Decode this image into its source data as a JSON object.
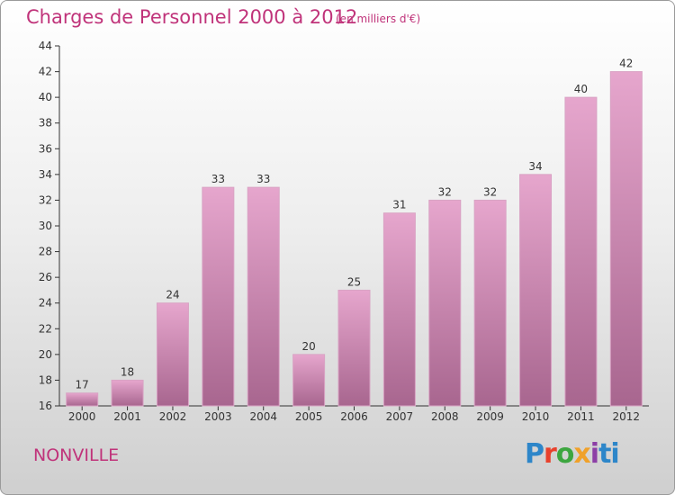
{
  "title": "Charges de Personnel 2000 à 2012",
  "subtitle": "(en milliers d'€)",
  "commune": "NONVILLE",
  "logo_text": "Proxiti",
  "colors": {
    "title": "#c0337a",
    "bar_top": "#e6a6cd",
    "bar_bottom": "#a8668f",
    "axis": "#333333"
  },
  "chart_data": {
    "type": "bar",
    "categories": [
      "2000",
      "2001",
      "2002",
      "2003",
      "2004",
      "2005",
      "2006",
      "2007",
      "2008",
      "2009",
      "2010",
      "2011",
      "2012"
    ],
    "values": [
      17,
      18,
      24,
      33,
      33,
      20,
      25,
      31,
      32,
      32,
      34,
      40,
      42
    ],
    "ylim": [
      16,
      44
    ],
    "yticks": [
      16,
      18,
      20,
      22,
      24,
      26,
      28,
      30,
      32,
      34,
      36,
      38,
      40,
      42,
      44
    ],
    "grid": false
  }
}
